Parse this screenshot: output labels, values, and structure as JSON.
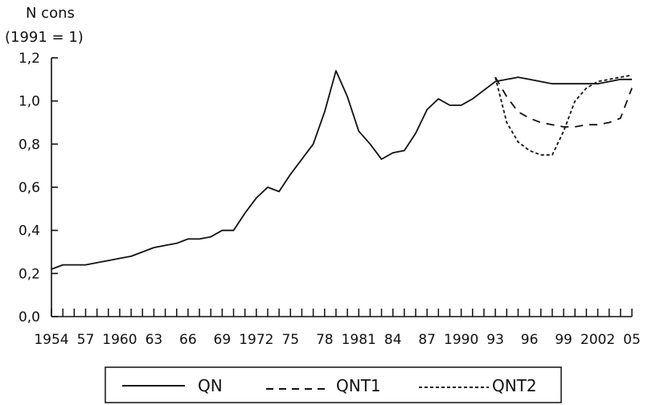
{
  "chart_data": {
    "type": "line",
    "ylabel_line1": "N cons",
    "ylabel_line2": "(1991 = 1)",
    "ylim": [
      0,
      1.2
    ],
    "yticks": [
      "0,0",
      "0,2",
      "0,4",
      "0,6",
      "0,8",
      "1,0",
      "1,2"
    ],
    "xlim": [
      1954,
      2005
    ],
    "xticks": [
      {
        "x": 1954,
        "label": "1954"
      },
      {
        "x": 1957,
        "label": "57"
      },
      {
        "x": 1960,
        "label": "1960"
      },
      {
        "x": 1963,
        "label": "63"
      },
      {
        "x": 1966,
        "label": "66"
      },
      {
        "x": 1969,
        "label": "69"
      },
      {
        "x": 1972,
        "label": "1972"
      },
      {
        "x": 1975,
        "label": "75"
      },
      {
        "x": 1978,
        "label": "78"
      },
      {
        "x": 1981,
        "label": "1981"
      },
      {
        "x": 1984,
        "label": "84"
      },
      {
        "x": 1987,
        "label": "87"
      },
      {
        "x": 1990,
        "label": "1990"
      },
      {
        "x": 1993,
        "label": "93"
      },
      {
        "x": 1996,
        "label": "96"
      },
      {
        "x": 1999,
        "label": "99"
      },
      {
        "x": 2002,
        "label": "2002"
      },
      {
        "x": 2005,
        "label": "05"
      }
    ],
    "series": [
      {
        "name": "QN",
        "style": "solid",
        "x": [
          1954,
          1955,
          1956,
          1957,
          1958,
          1959,
          1960,
          1961,
          1962,
          1963,
          1964,
          1965,
          1966,
          1967,
          1968,
          1969,
          1970,
          1971,
          1972,
          1973,
          1974,
          1975,
          1976,
          1977,
          1978,
          1979,
          1980,
          1981,
          1982,
          1983,
          1984,
          1985,
          1986,
          1987,
          1988,
          1989,
          1990,
          1991,
          1992,
          1993,
          1994,
          1995,
          1996,
          1997,
          1998,
          1999,
          2000,
          2001,
          2002,
          2003,
          2004,
          2005
        ],
        "values": [
          0.22,
          0.24,
          0.24,
          0.24,
          0.25,
          0.26,
          0.27,
          0.28,
          0.3,
          0.32,
          0.33,
          0.34,
          0.36,
          0.36,
          0.37,
          0.4,
          0.4,
          0.48,
          0.55,
          0.6,
          0.58,
          0.66,
          0.73,
          0.8,
          0.95,
          1.14,
          1.02,
          0.86,
          0.8,
          0.73,
          0.76,
          0.77,
          0.85,
          0.96,
          1.01,
          0.98,
          0.98,
          1.01,
          1.05,
          1.09,
          1.1,
          1.11,
          1.1,
          1.09,
          1.08,
          1.08,
          1.08,
          1.08,
          1.08,
          1.09,
          1.1,
          1.1
        ]
      },
      {
        "name": "QNT1",
        "style": "dashed",
        "x": [
          1993,
          1994,
          1995,
          1996,
          1997,
          1998,
          1999,
          2000,
          2001,
          2002,
          2003,
          2004,
          2005
        ],
        "values": [
          1.11,
          1.02,
          0.95,
          0.92,
          0.9,
          0.89,
          0.88,
          0.88,
          0.89,
          0.89,
          0.9,
          0.92,
          1.06
        ]
      },
      {
        "name": "QNT2",
        "style": "dotted",
        "x": [
          1993,
          1994,
          1995,
          1996,
          1997,
          1998,
          1999,
          2000,
          2001,
          2002,
          2003,
          2004,
          2005
        ],
        "values": [
          1.11,
          0.9,
          0.81,
          0.77,
          0.75,
          0.75,
          0.86,
          1.0,
          1.06,
          1.09,
          1.1,
          1.11,
          1.12
        ]
      }
    ],
    "legend": {
      "placement": "bottom",
      "labels": [
        "QN",
        "QNT1",
        "QNT2"
      ]
    }
  }
}
